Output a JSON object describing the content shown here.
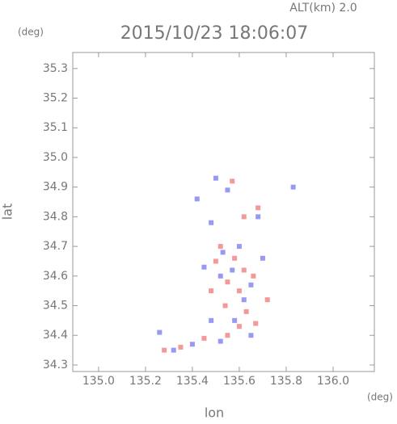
{
  "chart_data": {
    "type": "scatter",
    "title": "2015/10/23 18:06:07",
    "altitude_label": "ALT(km)  2.0",
    "x_label": "lon",
    "y_label": "lat",
    "x_unit": "(deg)",
    "y_unit": "(deg)",
    "xlim": [
      134.89,
      136.176
    ],
    "ylim": [
      34.278,
      35.354
    ],
    "xticks": [
      {
        "value": 135.0,
        "label": "135.0"
      },
      135.2,
      135.4,
      135.6,
      135.8,
      {
        "value": 136.0,
        "label": "136.0"
      }
    ],
    "yticks": [
      34.3,
      34.4,
      34.5,
      34.6,
      34.7,
      34.8,
      34.9,
      {
        "value": 35.0,
        "label": "35.0"
      },
      35.1,
      35.2,
      35.3
    ],
    "series": [
      {
        "color": "#f08080",
        "x": [
          135.52,
          135.58,
          135.62,
          135.55,
          135.6,
          135.66,
          135.5,
          135.63,
          135.6,
          135.67,
          135.55,
          135.45,
          135.35,
          135.28,
          135.62,
          135.68,
          135.57,
          135.72,
          135.48,
          135.54
        ],
        "values": [
          34.7,
          34.66,
          34.62,
          34.58,
          34.55,
          34.6,
          34.65,
          34.48,
          34.43,
          34.44,
          34.4,
          34.39,
          34.36,
          34.35,
          34.8,
          34.83,
          34.92,
          34.52,
          34.55,
          34.5
        ]
      },
      {
        "color": "#8080f0",
        "x": [
          135.53,
          135.6,
          135.57,
          135.65,
          135.52,
          135.48,
          135.58,
          135.65,
          135.52,
          135.4,
          135.32,
          135.26,
          135.5,
          135.55,
          135.48,
          135.68,
          135.83,
          135.7,
          135.45,
          135.62,
          135.42
        ],
        "values": [
          34.68,
          34.7,
          34.62,
          34.57,
          34.6,
          34.45,
          34.45,
          34.4,
          34.38,
          34.37,
          34.35,
          34.41,
          34.93,
          34.89,
          34.78,
          34.8,
          34.9,
          34.66,
          34.63,
          34.52,
          34.86
        ]
      }
    ]
  }
}
